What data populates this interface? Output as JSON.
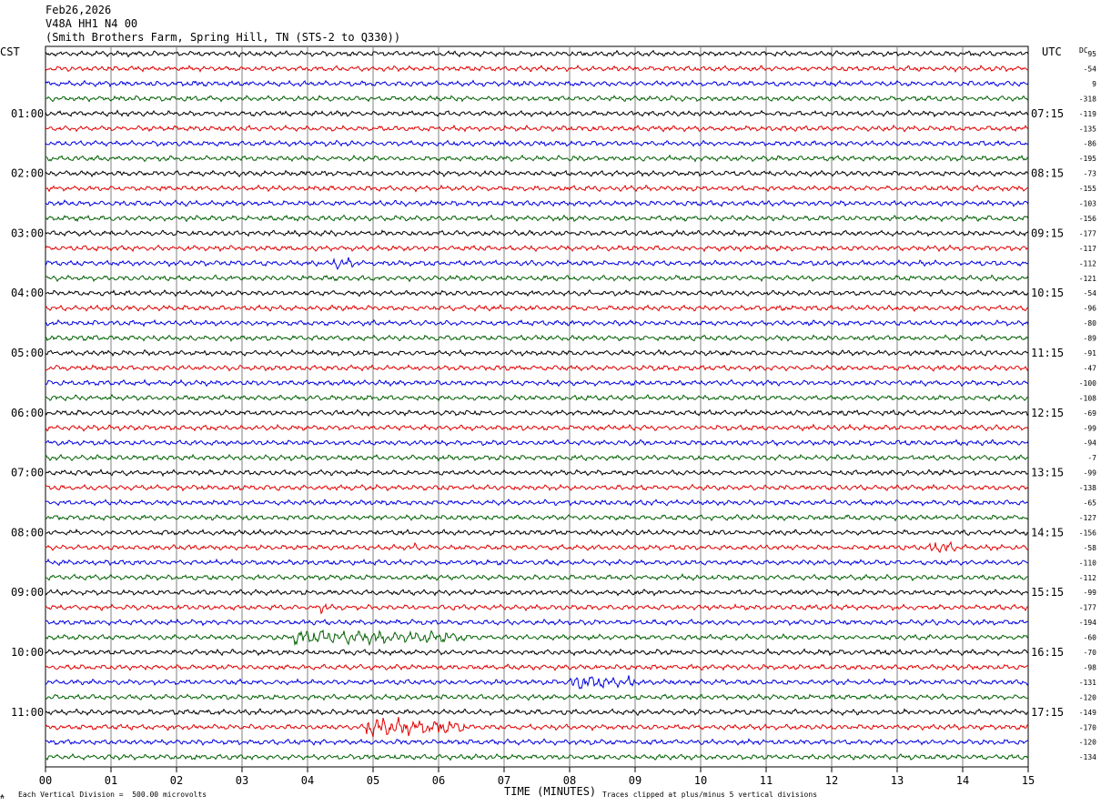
{
  "header": {
    "date": "Feb26,2026",
    "channel": "V48A HH1 N4 00",
    "site": "(Smith Brothers Farm, Spring Hill, TN (STS-2 to Q330))"
  },
  "labels": {
    "left_tz": "CST",
    "right_tz": "UTC",
    "dc": "DC",
    "xlabel": "TIME (MINUTES)",
    "footer_left": "Each Vertical Division =  500.00 microvolts",
    "footer_right": "Traces clipped at plus/minus 5 vertical divisions",
    "footer_mark": "⍲"
  },
  "colors": {
    "trace_cycle": [
      "#000000",
      "#e00000",
      "#0000e0",
      "#006000"
    ],
    "grid": "#808080"
  },
  "chart_data": {
    "type": "line",
    "title": "Feb26,2026 V48A HH1 N4 00",
    "xlabel": "TIME (MINUTES)",
    "xlim": [
      0,
      15
    ],
    "x_ticks": [
      "00",
      "01",
      "02",
      "03",
      "04",
      "05",
      "06",
      "07",
      "08",
      "09",
      "10",
      "11",
      "12",
      "13",
      "14",
      "15"
    ],
    "rows_per_hour": 4,
    "row_count": 48,
    "left_hour_labels": [
      "01:00",
      "02:00",
      "03:00",
      "04:00",
      "05:00",
      "06:00",
      "07:00",
      "08:00",
      "09:00",
      "10:00",
      "11:00"
    ],
    "right_hour_labels": [
      "07:15",
      "08:15",
      "09:15",
      "10:15",
      "11:15",
      "12:15",
      "13:15",
      "14:15",
      "15:15",
      "16:15",
      "17:15"
    ],
    "dc_offsets": [
      "95",
      "-54",
      "9",
      "-318",
      "-119",
      "-135",
      "-86",
      "-195",
      "-73",
      "-155",
      "-103",
      "-156",
      "-177",
      "-117",
      "-112",
      "-121",
      "-54",
      "-96",
      "-80",
      "-89",
      "-91",
      "-47",
      "-100",
      "-108",
      "-69",
      "-99",
      "-94",
      "-7",
      "-99",
      "-138",
      "-65",
      "-127",
      "-156",
      "-58",
      "-110",
      "-112",
      "-99",
      "-177",
      "-194",
      "-60",
      "-70",
      "-98",
      "-131",
      "-120",
      "-149",
      "-170",
      "-120",
      "-134"
    ],
    "events": [
      {
        "row": 14,
        "minute": 4.4,
        "duration": 0.3,
        "amplitude": 1.8
      },
      {
        "row": 33,
        "minute": 5.6,
        "duration": 0.1,
        "amplitude": 2.0
      },
      {
        "row": 33,
        "minute": 13.5,
        "duration": 0.4,
        "amplitude": 1.8
      },
      {
        "row": 37,
        "minute": 4.2,
        "duration": 0.1,
        "amplitude": 2.2
      },
      {
        "row": 39,
        "minute": 3.8,
        "duration": 2.6,
        "amplitude": 2.2
      },
      {
        "row": 42,
        "minute": 8.0,
        "duration": 1.0,
        "amplitude": 1.8
      },
      {
        "row": 42,
        "minute": 8.9,
        "duration": 0.1,
        "amplitude": 3.0
      },
      {
        "row": 45,
        "minute": 4.9,
        "duration": 1.5,
        "amplitude": 3.0
      }
    ]
  }
}
